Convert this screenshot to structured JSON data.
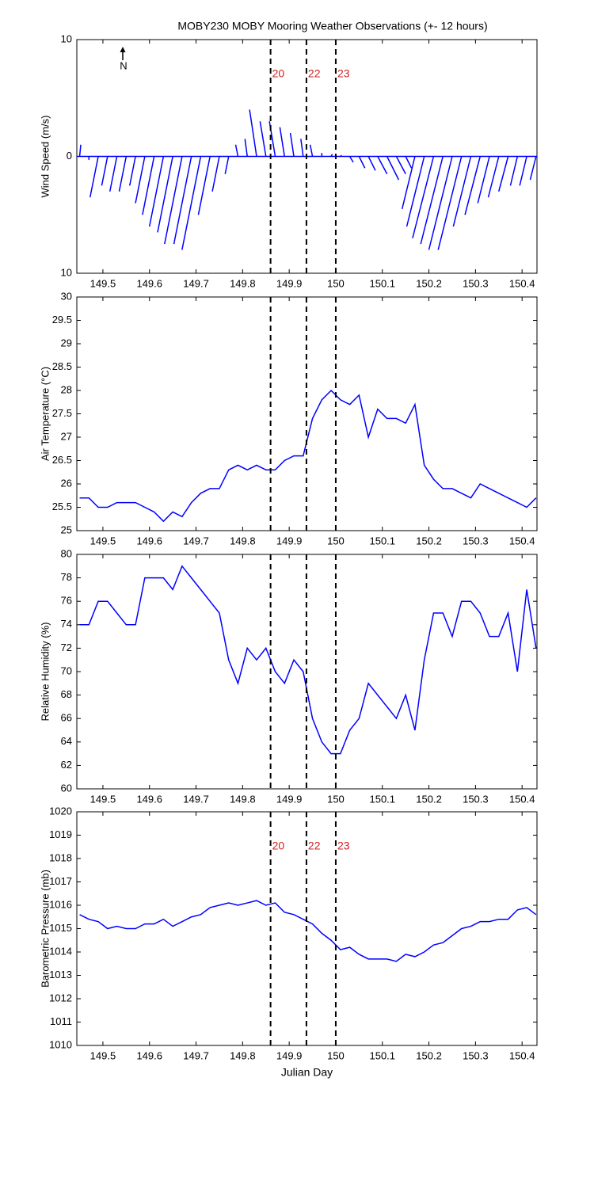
{
  "chart_data": [
    {
      "type": "quiver",
      "title": "MOBY230 MOBY Mooring Weather Observations (+- 12 hours)",
      "annotation": "N",
      "ylabel": "Wind Speed (m/s)",
      "color": "#0000ff",
      "xlim": [
        149.444,
        150.432
      ],
      "xticks": [
        149.5,
        149.6,
        149.7,
        149.8,
        149.9,
        150,
        150.1,
        150.2,
        150.3,
        150.4
      ],
      "ylim": [
        -10,
        10
      ],
      "yticks": [
        {
          "value": -10,
          "label": "10"
        },
        0,
        10
      ],
      "vline_color": "#cc2222",
      "vlines": [
        {
          "value": 149.86,
          "label": "20"
        },
        {
          "value": 149.937,
          "label": "22"
        },
        {
          "value": 150.0,
          "label": "23"
        }
      ],
      "x": [
        149.45,
        149.47,
        149.49,
        149.51,
        149.53,
        149.55,
        149.57,
        149.59,
        149.61,
        149.63,
        149.65,
        149.67,
        149.69,
        149.71,
        149.73,
        149.75,
        149.77,
        149.79,
        149.81,
        149.83,
        149.85,
        149.87,
        149.89,
        149.91,
        149.93,
        149.95,
        149.97,
        149.99,
        150.01,
        150.03,
        150.05,
        150.07,
        150.09,
        150.11,
        150.13,
        150.15,
        150.17,
        150.19,
        150.21,
        150.23,
        150.25,
        150.27,
        150.29,
        150.31,
        150.33,
        150.35,
        150.37,
        150.39,
        150.41,
        150.43
      ],
      "u": [
        0.1,
        0,
        -0.7,
        -0.5,
        -0.6,
        -0.6,
        -0.5,
        -0.8,
        -1,
        -1.2,
        -1.3,
        -1.5,
        -1.5,
        -1.6,
        -1,
        -0.6,
        -0.3,
        -0.2,
        -0.2,
        -0.6,
        -0.5,
        -0.5,
        -0.4,
        -0.3,
        -0.2,
        -0.2,
        0,
        0.1,
        0.1,
        0.3,
        0.5,
        0.6,
        0.8,
        1,
        0.8,
        0.5,
        -1.1,
        -1.5,
        -1.8,
        -1.9,
        -2,
        -2,
        -1.5,
        -1.3,
        -1,
        -0.9,
        -0.8,
        -0.6,
        -0.6,
        -0.5
      ],
      "v": [
        1,
        -0.3,
        -3.5,
        -2.5,
        -3,
        -3,
        -2.5,
        -4,
        -5,
        -6,
        -6.5,
        -7.5,
        -7.5,
        -8,
        -5,
        -3,
        -1.5,
        1,
        1.5,
        4,
        3,
        3,
        2.5,
        2,
        1.5,
        1,
        0.3,
        0.2,
        0.1,
        -0.5,
        -1,
        -1.2,
        -1.5,
        -2,
        -1.5,
        -1,
        -4.5,
        -6,
        -7,
        -7.5,
        -8,
        -8,
        -6,
        -5,
        -4,
        -3.5,
        -3,
        -2.5,
        -2.5,
        -2
      ]
    },
    {
      "type": "line",
      "ylabel": "Air Temperature (°C)",
      "color": "#0000ff",
      "xlim": [
        149.444,
        150.432
      ],
      "xticks": [
        149.5,
        149.6,
        149.7,
        149.8,
        149.9,
        150,
        150.1,
        150.2,
        150.3,
        150.4
      ],
      "ylim": [
        25,
        30
      ],
      "yticks": [
        25,
        25.5,
        26,
        26.5,
        27,
        27.5,
        28,
        28.5,
        29,
        29.5,
        30
      ],
      "vlines": [
        {
          "value": 149.86
        },
        {
          "value": 149.937
        },
        {
          "value": 150.0
        }
      ],
      "x": [
        149.45,
        149.47,
        149.49,
        149.51,
        149.53,
        149.55,
        149.57,
        149.59,
        149.61,
        149.63,
        149.65,
        149.67,
        149.69,
        149.71,
        149.73,
        149.75,
        149.77,
        149.79,
        149.81,
        149.83,
        149.85,
        149.87,
        149.89,
        149.91,
        149.93,
        149.95,
        149.97,
        149.99,
        150.01,
        150.03,
        150.05,
        150.07,
        150.09,
        150.11,
        150.13,
        150.15,
        150.17,
        150.19,
        150.21,
        150.23,
        150.25,
        150.27,
        150.29,
        150.31,
        150.33,
        150.35,
        150.37,
        150.39,
        150.41,
        150.43
      ],
      "values": [
        25.7,
        25.7,
        25.5,
        25.5,
        25.6,
        25.6,
        25.6,
        25.5,
        25.4,
        25.2,
        25.4,
        25.3,
        25.6,
        25.8,
        25.9,
        25.9,
        26.3,
        26.4,
        26.3,
        26.4,
        26.3,
        26.3,
        26.5,
        26.6,
        26.6,
        27.4,
        27.8,
        28.0,
        27.8,
        27.7,
        27.9,
        27.0,
        27.6,
        27.4,
        27.4,
        27.3,
        27.7,
        26.4,
        26.1,
        25.9,
        25.9,
        25.8,
        25.7,
        26.0,
        25.9,
        25.8,
        25.7,
        25.6,
        25.5,
        25.7
      ]
    },
    {
      "type": "line",
      "ylabel": "Relative Humidity (%)",
      "color": "#0000ff",
      "xlim": [
        149.444,
        150.432
      ],
      "xticks": [
        149.5,
        149.6,
        149.7,
        149.8,
        149.9,
        150,
        150.1,
        150.2,
        150.3,
        150.4
      ],
      "ylim": [
        60,
        80
      ],
      "yticks": [
        60,
        62,
        64,
        66,
        68,
        70,
        72,
        74,
        76,
        78,
        80
      ],
      "vlines": [
        {
          "value": 149.86
        },
        {
          "value": 149.937
        },
        {
          "value": 150.0
        }
      ],
      "x": [
        149.45,
        149.47,
        149.49,
        149.51,
        149.53,
        149.55,
        149.57,
        149.59,
        149.61,
        149.63,
        149.65,
        149.67,
        149.69,
        149.71,
        149.73,
        149.75,
        149.77,
        149.79,
        149.81,
        149.83,
        149.85,
        149.87,
        149.89,
        149.91,
        149.93,
        149.95,
        149.97,
        149.99,
        150.01,
        150.03,
        150.05,
        150.07,
        150.09,
        150.11,
        150.13,
        150.15,
        150.17,
        150.19,
        150.21,
        150.23,
        150.25,
        150.27,
        150.29,
        150.31,
        150.33,
        150.35,
        150.37,
        150.39,
        150.41,
        150.43
      ],
      "values": [
        74,
        74,
        76,
        76,
        75,
        74,
        74,
        78,
        78,
        78,
        77,
        79,
        78,
        77,
        76,
        75,
        71,
        69,
        72,
        71,
        72,
        70,
        69,
        71,
        70,
        66,
        64,
        63,
        63,
        65,
        66,
        69,
        68,
        67,
        66,
        68,
        65,
        71,
        75,
        75,
        73,
        76,
        76,
        75,
        73,
        73,
        75,
        70,
        77,
        72
      ]
    },
    {
      "type": "line",
      "ylabel": "Barometric Pressure (mb)",
      "xlabel": "Julian Day",
      "color": "#0000ff",
      "xlim": [
        149.444,
        150.432
      ],
      "xticks": [
        149.5,
        149.6,
        149.7,
        149.8,
        149.9,
        150,
        150.1,
        150.2,
        150.3,
        150.4
      ],
      "ylim": [
        1010,
        1020
      ],
      "yticks": [
        1010,
        1011,
        1012,
        1013,
        1014,
        1015,
        1016,
        1017,
        1018,
        1019,
        1020
      ],
      "vline_color": "#cc2222",
      "vlines": [
        {
          "value": 149.86,
          "label": "20"
        },
        {
          "value": 149.937,
          "label": "22"
        },
        {
          "value": 150.0,
          "label": "23"
        }
      ],
      "x": [
        149.45,
        149.47,
        149.49,
        149.51,
        149.53,
        149.55,
        149.57,
        149.59,
        149.61,
        149.63,
        149.65,
        149.67,
        149.69,
        149.71,
        149.73,
        149.75,
        149.77,
        149.79,
        149.81,
        149.83,
        149.85,
        149.87,
        149.89,
        149.91,
        149.93,
        149.95,
        149.97,
        149.99,
        150.01,
        150.03,
        150.05,
        150.07,
        150.09,
        150.11,
        150.13,
        150.15,
        150.17,
        150.19,
        150.21,
        150.23,
        150.25,
        150.27,
        150.29,
        150.31,
        150.33,
        150.35,
        150.37,
        150.39,
        150.41,
        150.43
      ],
      "values": [
        1015.6,
        1015.4,
        1015.3,
        1015.0,
        1015.1,
        1015.0,
        1015.0,
        1015.2,
        1015.2,
        1015.4,
        1015.1,
        1015.3,
        1015.5,
        1015.6,
        1015.9,
        1016.0,
        1016.1,
        1016.0,
        1016.1,
        1016.2,
        1016.0,
        1016.1,
        1015.7,
        1015.6,
        1015.4,
        1015.2,
        1014.8,
        1014.5,
        1014.1,
        1014.2,
        1013.9,
        1013.7,
        1013.7,
        1013.7,
        1013.6,
        1013.9,
        1013.8,
        1014.0,
        1014.3,
        1014.4,
        1014.7,
        1015.0,
        1015.1,
        1015.3,
        1015.3,
        1015.4,
        1015.4,
        1015.8,
        1015.9,
        1015.6
      ]
    }
  ]
}
